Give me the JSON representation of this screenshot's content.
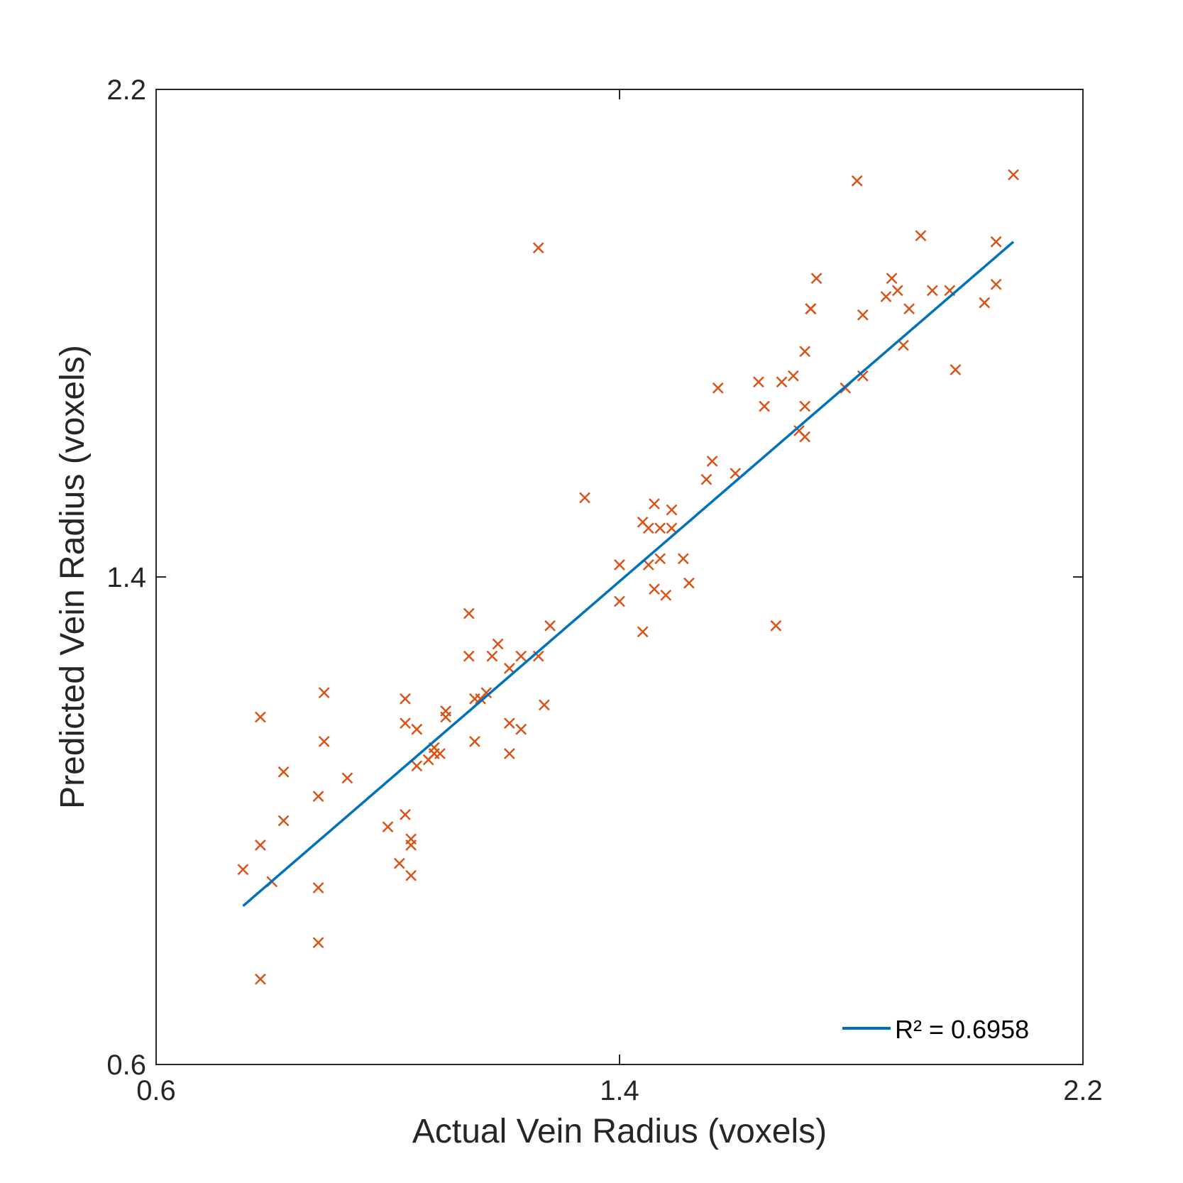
{
  "chart_data": {
    "type": "scatter",
    "xlabel": "Actual Vein Radius (voxels)",
    "ylabel": "Predicted Vein Radius (voxels)",
    "xlim": [
      0.6,
      2.2
    ],
    "ylim": [
      0.6,
      2.2
    ],
    "xticks": [
      "0.6",
      "1.4",
      "2.2"
    ],
    "yticks": [
      "0.6",
      "1.4",
      "2.2"
    ],
    "grid": false,
    "legend_position": "bottom-right",
    "series": [
      {
        "marker": "x",
        "color": "#d95319",
        "points": [
          [
            0.75,
            0.92
          ],
          [
            0.78,
            1.17
          ],
          [
            0.78,
            0.96
          ],
          [
            0.78,
            0.74
          ],
          [
            0.8,
            0.9
          ],
          [
            0.82,
            1.0
          ],
          [
            0.82,
            1.08
          ],
          [
            0.88,
            0.89
          ],
          [
            0.88,
            1.04
          ],
          [
            0.88,
            0.8
          ],
          [
            0.89,
            1.21
          ],
          [
            0.89,
            1.13
          ],
          [
            0.93,
            1.07
          ],
          [
            1.0,
            0.99
          ],
          [
            1.02,
            0.93
          ],
          [
            1.03,
            1.2
          ],
          [
            1.03,
            1.16
          ],
          [
            1.03,
            1.01
          ],
          [
            1.04,
            0.97
          ],
          [
            1.04,
            0.96
          ],
          [
            1.04,
            0.91
          ],
          [
            1.05,
            1.15
          ],
          [
            1.05,
            1.09
          ],
          [
            1.07,
            1.1
          ],
          [
            1.08,
            1.11
          ],
          [
            1.08,
            1.12
          ],
          [
            1.08,
            1.11
          ],
          [
            1.09,
            1.11
          ],
          [
            1.1,
            1.18
          ],
          [
            1.1,
            1.17
          ],
          [
            1.14,
            1.34
          ],
          [
            1.14,
            1.27
          ],
          [
            1.15,
            1.2
          ],
          [
            1.15,
            1.13
          ],
          [
            1.16,
            1.2
          ],
          [
            1.17,
            1.21
          ],
          [
            1.18,
            1.27
          ],
          [
            1.19,
            1.29
          ],
          [
            1.21,
            1.25
          ],
          [
            1.21,
            1.16
          ],
          [
            1.21,
            1.11
          ],
          [
            1.23,
            1.15
          ],
          [
            1.23,
            1.27
          ],
          [
            1.26,
            1.27
          ],
          [
            1.26,
            1.94
          ],
          [
            1.27,
            1.19
          ],
          [
            1.28,
            1.32
          ],
          [
            1.34,
            1.53
          ],
          [
            1.4,
            1.42
          ],
          [
            1.4,
            1.36
          ],
          [
            1.44,
            1.31
          ],
          [
            1.44,
            1.49
          ],
          [
            1.45,
            1.48
          ],
          [
            1.45,
            1.42
          ],
          [
            1.46,
            1.52
          ],
          [
            1.46,
            1.38
          ],
          [
            1.47,
            1.48
          ],
          [
            1.47,
            1.43
          ],
          [
            1.48,
            1.37
          ],
          [
            1.49,
            1.48
          ],
          [
            1.49,
            1.51
          ],
          [
            1.51,
            1.43
          ],
          [
            1.52,
            1.39
          ],
          [
            1.55,
            1.56
          ],
          [
            1.56,
            1.59
          ],
          [
            1.57,
            1.71
          ],
          [
            1.6,
            1.57
          ],
          [
            1.64,
            1.72
          ],
          [
            1.65,
            1.68
          ],
          [
            1.67,
            1.32
          ],
          [
            1.68,
            1.72
          ],
          [
            1.7,
            1.73
          ],
          [
            1.71,
            1.64
          ],
          [
            1.72,
            1.63
          ],
          [
            1.72,
            1.68
          ],
          [
            1.72,
            1.77
          ],
          [
            1.73,
            1.84
          ],
          [
            1.73,
            1.84
          ],
          [
            1.73,
            1.84
          ],
          [
            1.74,
            1.89
          ],
          [
            1.79,
            1.71
          ],
          [
            1.81,
            2.05
          ],
          [
            1.82,
            1.73
          ],
          [
            1.82,
            1.83
          ],
          [
            1.86,
            1.86
          ],
          [
            1.87,
            1.89
          ],
          [
            1.88,
            1.87
          ],
          [
            1.89,
            1.78
          ],
          [
            1.9,
            1.84
          ],
          [
            1.92,
            1.96
          ],
          [
            1.94,
            1.87
          ],
          [
            1.97,
            1.87
          ],
          [
            1.98,
            1.74
          ],
          [
            2.03,
            1.85
          ],
          [
            2.05,
            1.95
          ],
          [
            2.05,
            1.88
          ],
          [
            2.08,
            2.06
          ]
        ]
      },
      {
        "name": "R² = 0.6958",
        "type": "line",
        "color": "#0072bd",
        "x": [
          0.75,
          2.08
        ],
        "y": [
          0.86,
          1.95
        ]
      }
    ]
  }
}
